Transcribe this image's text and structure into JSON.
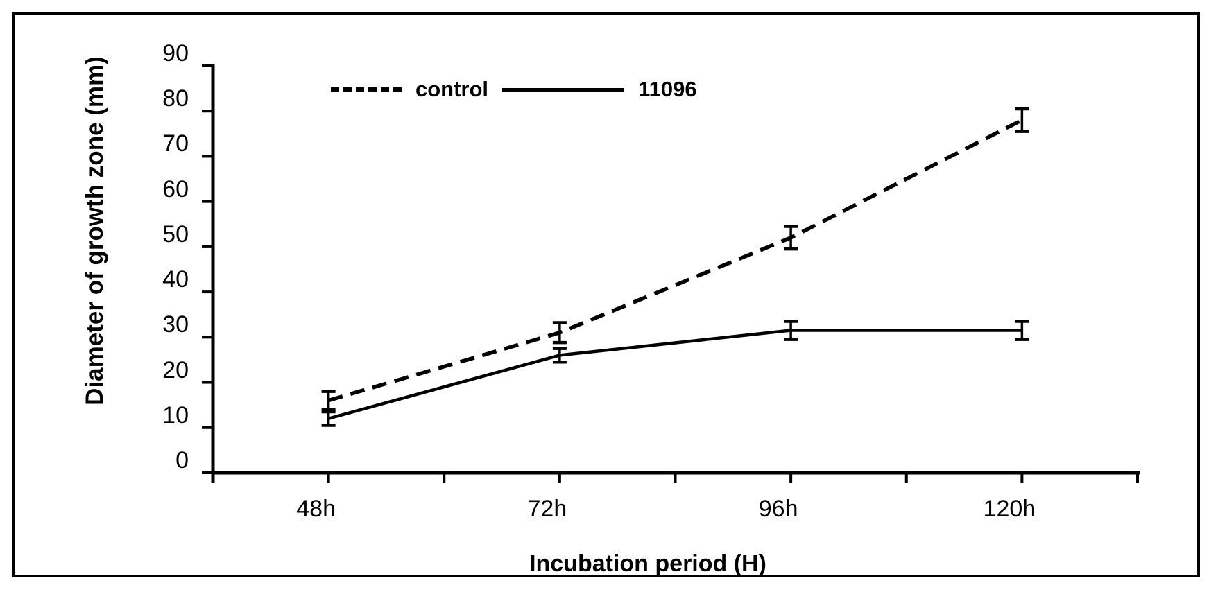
{
  "figure": {
    "background": "#ffffff",
    "border_color": "#000000",
    "line_color": "#000000"
  },
  "chart_data": {
    "type": "line",
    "title": "",
    "xlabel": "Incubation period (H)",
    "ylabel": "Diameter of growth zone (mm)",
    "categories": [
      "48h",
      "72h",
      "96h",
      "120h"
    ],
    "series": [
      {
        "name": "control",
        "line_style": "dashed",
        "color": "#000000",
        "values": [
          16,
          31,
          52,
          78
        ],
        "error_bars": [
          2,
          2.2,
          2.5,
          2.5
        ]
      },
      {
        "name": "11096",
        "line_style": "solid",
        "color": "#000000",
        "values": [
          12,
          26,
          31.5,
          31.5
        ],
        "error_bars": [
          1.5,
          1.5,
          2,
          2
        ]
      }
    ],
    "ylim": [
      0,
      90
    ],
    "yticks": [
      0,
      10,
      20,
      30,
      40,
      50,
      60,
      70,
      80,
      90
    ],
    "grid": false,
    "legend_position": "top-center",
    "error_bar_caps": true
  }
}
